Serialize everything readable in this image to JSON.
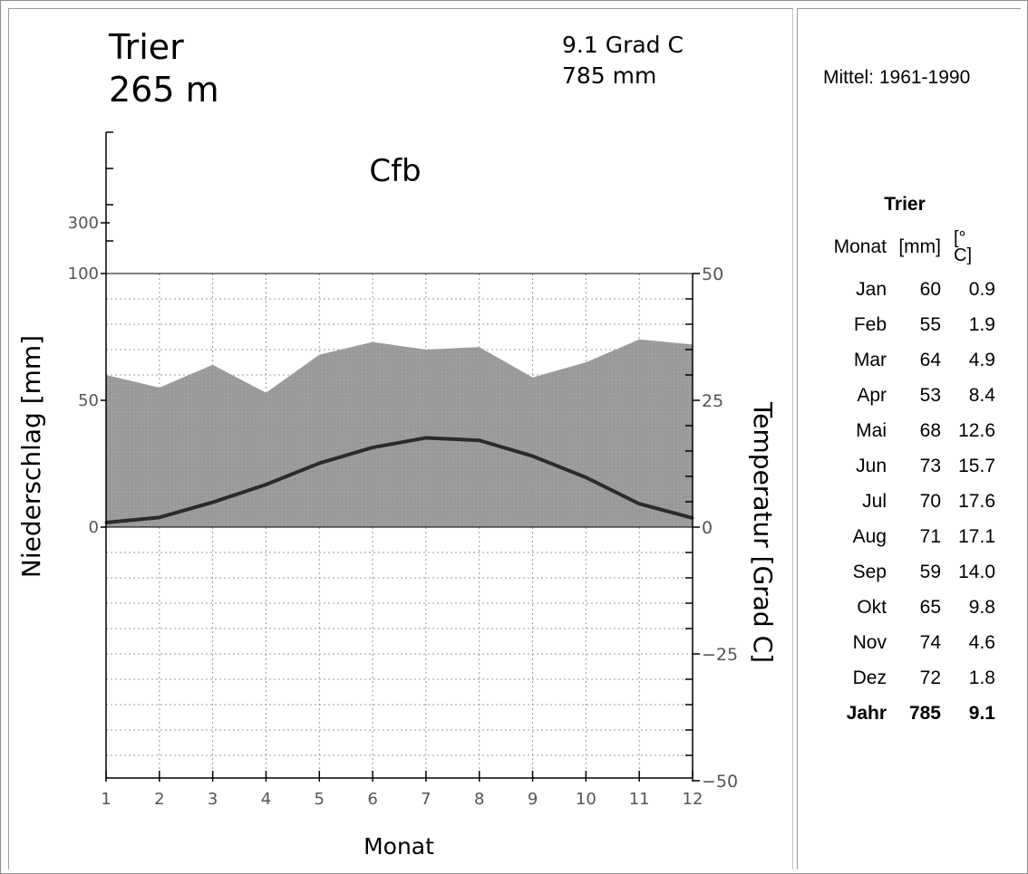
{
  "chart_data": {
    "type": "climate-diagram",
    "station": "Trier",
    "elevation": "265 m",
    "annual_temp": "9.1 Grad C",
    "annual_precip": "785 mm",
    "climate_class": "Cfb",
    "xlabel": "Monat",
    "ylabel_left": "Niederschlag [mm]",
    "ylabel_right": "Temperatur [Grad C]",
    "x": [
      1,
      2,
      3,
      4,
      5,
      6,
      7,
      8,
      9,
      10,
      11,
      12
    ],
    "precip_mm": [
      60,
      55,
      64,
      53,
      68,
      73,
      70,
      71,
      59,
      65,
      74,
      72
    ],
    "temp_c": [
      0.9,
      1.9,
      4.9,
      8.4,
      12.6,
      15.7,
      17.6,
      17.1,
      14.0,
      9.8,
      4.6,
      1.8
    ],
    "ylim_precip": [
      0,
      100
    ],
    "ylim_temp": [
      -50,
      50
    ],
    "left_tick_labels": [
      "300",
      "100",
      "50",
      "0"
    ],
    "right_tick_labels": [
      "50",
      "25",
      "0",
      "-25",
      "-50"
    ],
    "x_tick_labels": [
      "1",
      "2",
      "3",
      "4",
      "5",
      "6",
      "7",
      "8",
      "9",
      "10",
      "11",
      "12"
    ],
    "grid": true,
    "colors": {
      "precip_fill": "#999999",
      "temp_line": "#2b2b2b",
      "grid": "#9a9a9a"
    }
  },
  "side": {
    "period": "Mittel: 1961-1990",
    "station": "Trier",
    "headers": [
      "Monat",
      "[mm]",
      "[°\nC]"
    ],
    "rows": [
      [
        "Jan",
        "60",
        "0.9"
      ],
      [
        "Feb",
        "55",
        "1.9"
      ],
      [
        "Mar",
        "64",
        "4.9"
      ],
      [
        "Apr",
        "53",
        "8.4"
      ],
      [
        "Mai",
        "68",
        "12.6"
      ],
      [
        "Jun",
        "73",
        "15.7"
      ],
      [
        "Jul",
        "70",
        "17.6"
      ],
      [
        "Aug",
        "71",
        "17.1"
      ],
      [
        "Sep",
        "59",
        "14.0"
      ],
      [
        "Okt",
        "65",
        "9.8"
      ],
      [
        "Nov",
        "74",
        "4.6"
      ],
      [
        "Dez",
        "72",
        "1.8"
      ]
    ],
    "total": [
      "Jahr",
      "785",
      "9.1"
    ]
  }
}
